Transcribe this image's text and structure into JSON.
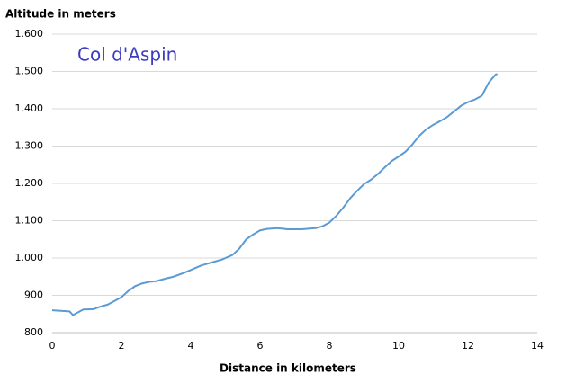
{
  "chart_data": {
    "type": "line",
    "y_label": "Altitude in meters",
    "x_label": "Distance in kilometers",
    "annotation": "Col d'Aspin",
    "color": "#5b9bd5",
    "annotation_color": "#3c3cc0",
    "grid": true,
    "x": [
      0,
      0.5,
      0.6,
      0.7,
      0.9,
      1.2,
      1.4,
      1.6,
      1.8,
      2.0,
      2.2,
      2.4,
      2.6,
      2.8,
      3.0,
      3.2,
      3.5,
      3.8,
      4.0,
      4.3,
      4.6,
      4.9,
      5.2,
      5.4,
      5.6,
      5.8,
      6.0,
      6.2,
      6.5,
      6.8,
      7.2,
      7.6,
      7.8,
      8.0,
      8.2,
      8.4,
      8.6,
      8.8,
      9.0,
      9.2,
      9.4,
      9.6,
      9.8,
      10.0,
      10.2,
      10.4,
      10.6,
      10.8,
      11.0,
      11.2,
      11.4,
      11.6,
      11.8,
      12.0,
      12.2,
      12.4,
      12.6,
      12.8,
      12.85
    ],
    "values": [
      860,
      857,
      847,
      852,
      862,
      863,
      870,
      875,
      885,
      895,
      912,
      925,
      932,
      936,
      938,
      943,
      950,
      960,
      968,
      980,
      988,
      996,
      1008,
      1025,
      1050,
      1063,
      1074,
      1078,
      1080,
      1077,
      1077,
      1080,
      1085,
      1095,
      1113,
      1135,
      1160,
      1180,
      1198,
      1210,
      1225,
      1243,
      1260,
      1272,
      1285,
      1305,
      1328,
      1345,
      1357,
      1367,
      1378,
      1393,
      1408,
      1418,
      1425,
      1435,
      1470,
      1492,
      1493
    ],
    "xlim": [
      0,
      14
    ],
    "xticks": [
      0,
      2,
      4,
      6,
      8,
      10,
      12,
      14
    ],
    "ylim": [
      800,
      1600
    ],
    "yticks": [
      800,
      900,
      {
        "value": 1000,
        "label": "1.000"
      },
      {
        "value": 1100,
        "label": "1.100"
      },
      {
        "value": 1200,
        "label": "1.200"
      },
      {
        "value": 1300,
        "label": "1.300"
      },
      {
        "value": 1400,
        "label": "1.400"
      },
      {
        "value": 1500,
        "label": "1.500"
      },
      {
        "value": 1600,
        "label": "1.600"
      }
    ]
  }
}
